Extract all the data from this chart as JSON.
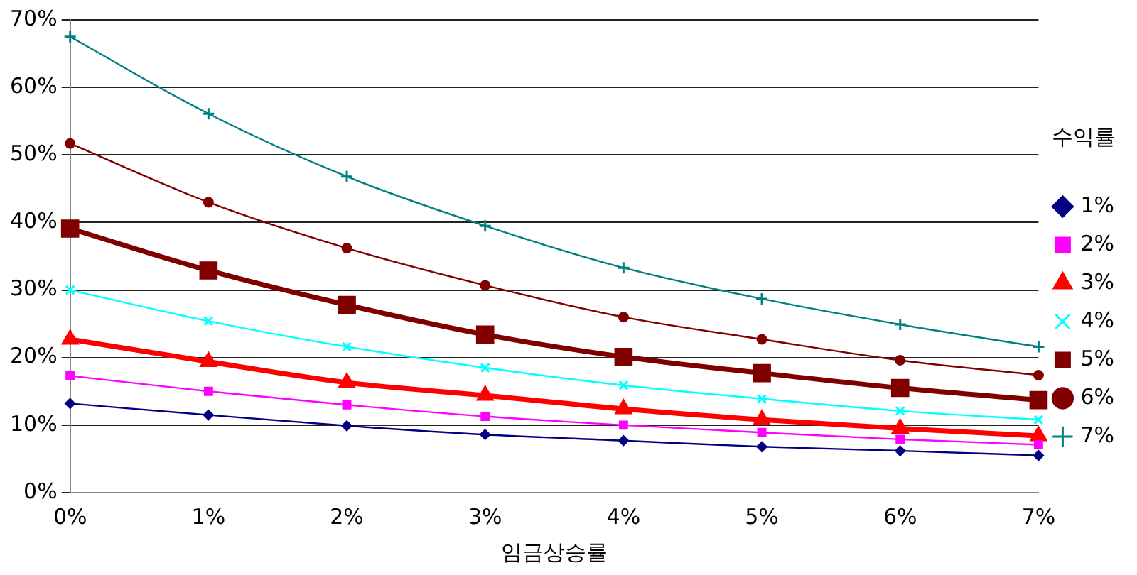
{
  "chart_data": {
    "type": "line",
    "xlabel": "임금상승률",
    "legend_title": "수익률",
    "legend": "right",
    "grid": "y",
    "categories": [
      "0%",
      "1%",
      "2%",
      "3%",
      "4%",
      "5%",
      "6%",
      "7%"
    ],
    "ylim": [
      0,
      70
    ],
    "yticks": [
      {
        "value": 0,
        "label": "0%"
      },
      {
        "value": 10,
        "label": "10%"
      },
      {
        "value": 20,
        "label": "20%"
      },
      {
        "value": 30,
        "label": "30%"
      },
      {
        "value": 40,
        "label": "40%"
      },
      {
        "value": 50,
        "label": "50%"
      },
      {
        "value": 60,
        "label": "60%"
      },
      {
        "value": 70,
        "label": "70%"
      }
    ],
    "series": [
      {
        "name": "1%",
        "color": "#000080",
        "marker": "diamond",
        "values": [
          13.2,
          11.5,
          9.9,
          8.6,
          7.7,
          6.8,
          6.2,
          5.5
        ]
      },
      {
        "name": "2%",
        "color": "#ff00ff",
        "marker": "square",
        "values": [
          17.3,
          15.0,
          13.0,
          11.3,
          10.0,
          8.9,
          7.9,
          7.1
        ]
      },
      {
        "name": "3%",
        "color": "#ff0000",
        "marker": "triangle",
        "values": [
          22.7,
          19.4,
          16.3,
          14.4,
          12.4,
          10.8,
          9.5,
          8.4
        ]
      },
      {
        "name": "4%",
        "color": "#00ffff",
        "marker": "cross",
        "values": [
          30.0,
          25.4,
          21.6,
          18.5,
          15.9,
          13.9,
          12.1,
          10.8
        ]
      },
      {
        "name": "5%",
        "color": "#800000",
        "marker": "square",
        "values": [
          39.1,
          32.9,
          27.8,
          23.4,
          20.1,
          17.7,
          15.5,
          13.7
        ]
      },
      {
        "name": "6%",
        "color": "#800000",
        "marker": "circle",
        "values": [
          51.7,
          43.0,
          36.2,
          30.7,
          26.0,
          22.7,
          19.6,
          17.4
        ]
      },
      {
        "name": "7%",
        "color": "#008080",
        "marker": "plus",
        "values": [
          67.5,
          56.1,
          46.8,
          39.5,
          33.3,
          28.7,
          24.9,
          21.6
        ]
      }
    ]
  }
}
